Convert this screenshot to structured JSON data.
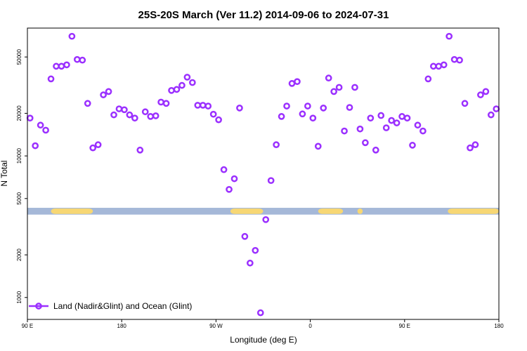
{
  "chart_data": {
    "type": "scatter",
    "title": "25S-20S March (Ver 11.2)   2014-09-06 to 2024-07-31",
    "xlabel": "Longitude (deg E)",
    "ylabel": "N Total",
    "y_scale": "log",
    "xlim": [
      90,
      450
    ],
    "ylim": [
      700,
      80000
    ],
    "x_ticks": [
      {
        "value": 90,
        "label": "90 E"
      },
      {
        "value": 162,
        "label": "180"
      },
      {
        "value": 234,
        "label": "90 W"
      },
      {
        "value": 306,
        "label": "0"
      },
      {
        "value": 378,
        "label": "90 E"
      },
      {
        "value": 450,
        "label": "180"
      }
    ],
    "y_ticks": [
      {
        "value": 1000,
        "label": "1000"
      },
      {
        "value": 2000,
        "label": "2000"
      },
      {
        "value": 5000,
        "label": "5000"
      },
      {
        "value": 10000,
        "label": "10000"
      },
      {
        "value": 20000,
        "label": "20000"
      },
      {
        "value": 50000,
        "label": "50000"
      }
    ],
    "land_bar": {
      "y_low": 3850,
      "y_high": 4300,
      "ocean_color": "#a5b8d8",
      "land_color": "#f7d774",
      "land_segments": [
        [
          108,
          140
        ],
        [
          245,
          270
        ],
        [
          312,
          331
        ],
        [
          327,
          328
        ],
        [
          342,
          346
        ],
        [
          411,
          459
        ]
      ]
    },
    "legend": {
      "label": "Land (Nadir&Glint) and Ocean (Glint)",
      "position": "bottom-left"
    },
    "series": [
      {
        "name": "Land (Nadir&Glint) and Ocean (Glint)",
        "color": "#9b30ff",
        "points": [
          [
            92,
            18500
          ],
          [
            96,
            11800
          ],
          [
            100,
            16500
          ],
          [
            104,
            15200
          ],
          [
            108,
            35000
          ],
          [
            112,
            43000
          ],
          [
            116,
            43000
          ],
          [
            120,
            44000
          ],
          [
            124,
            70000
          ],
          [
            128,
            48000
          ],
          [
            132,
            47500
          ],
          [
            136,
            23500
          ],
          [
            140,
            11400
          ],
          [
            144,
            12000
          ],
          [
            148,
            27000
          ],
          [
            152,
            28500
          ],
          [
            156,
            19500
          ],
          [
            160,
            21500
          ],
          [
            164,
            21200
          ],
          [
            168,
            19500
          ],
          [
            172,
            18500
          ],
          [
            176,
            11000
          ],
          [
            180,
            20500
          ],
          [
            184,
            19000
          ],
          [
            188,
            19200
          ],
          [
            192,
            24000
          ],
          [
            196,
            23500
          ],
          [
            200,
            29000
          ],
          [
            204,
            29500
          ],
          [
            208,
            31500
          ],
          [
            212,
            36000
          ],
          [
            216,
            33000
          ],
          [
            220,
            22800
          ],
          [
            224,
            22800
          ],
          [
            228,
            22500
          ],
          [
            232,
            19700
          ],
          [
            236,
            18000
          ],
          [
            240,
            8000
          ],
          [
            244,
            5800
          ],
          [
            248,
            6900
          ],
          [
            252,
            21800
          ],
          [
            256,
            2700
          ],
          [
            260,
            1750
          ],
          [
            264,
            2150
          ],
          [
            268,
            780
          ],
          [
            272,
            3550
          ],
          [
            276,
            6700
          ],
          [
            280,
            12000
          ],
          [
            284,
            19000
          ],
          [
            288,
            22500
          ],
          [
            292,
            32500
          ],
          [
            296,
            33500
          ],
          [
            300,
            19800
          ],
          [
            304,
            22500
          ],
          [
            308,
            18500
          ],
          [
            312,
            11700
          ],
          [
            316,
            21800
          ],
          [
            320,
            35500
          ],
          [
            324,
            28500
          ],
          [
            328,
            30500
          ],
          [
            332,
            15000
          ],
          [
            336,
            22000
          ],
          [
            340,
            30500
          ],
          [
            344,
            15500
          ],
          [
            348,
            12400
          ],
          [
            352,
            18500
          ],
          [
            356,
            11000
          ],
          [
            360,
            19300
          ],
          [
            364,
            15800
          ],
          [
            368,
            17800
          ],
          [
            372,
            17100
          ],
          [
            376,
            19000
          ],
          [
            380,
            18500
          ],
          [
            384,
            11900
          ],
          [
            388,
            16500
          ],
          [
            392,
            15000
          ],
          [
            396,
            35000
          ],
          [
            400,
            43000
          ],
          [
            404,
            43000
          ],
          [
            408,
            44000
          ],
          [
            412,
            70000
          ],
          [
            416,
            48000
          ],
          [
            420,
            47500
          ],
          [
            424,
            23500
          ],
          [
            428,
            11400
          ],
          [
            432,
            12000
          ],
          [
            436,
            27000
          ],
          [
            440,
            28500
          ],
          [
            444,
            19500
          ],
          [
            448,
            21500
          ]
        ]
      }
    ]
  }
}
